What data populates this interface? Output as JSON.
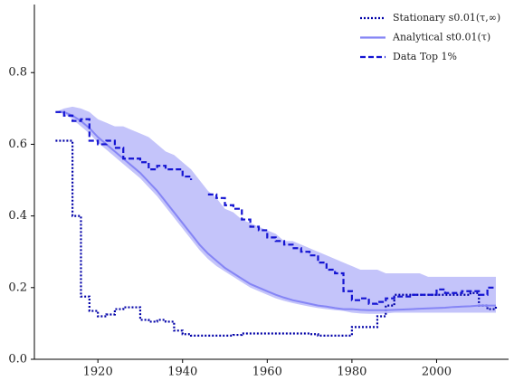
{
  "chart_data": {
    "type": "line",
    "x": [
      1910,
      1912,
      1914,
      1916,
      1918,
      1920,
      1922,
      1924,
      1926,
      1928,
      1930,
      1932,
      1934,
      1936,
      1938,
      1940,
      1942,
      1944,
      1946,
      1948,
      1950,
      1952,
      1954,
      1956,
      1958,
      1960,
      1962,
      1964,
      1966,
      1968,
      1970,
      1972,
      1974,
      1976,
      1978,
      1980,
      1982,
      1984,
      1986,
      1988,
      1990,
      1992,
      1994,
      1996,
      1998,
      2000,
      2002,
      2004,
      2006,
      2008,
      2010,
      2012,
      2014
    ],
    "band": {
      "color": "#c4c4fa",
      "upper": [
        0.69,
        0.7,
        0.705,
        0.7,
        0.69,
        0.67,
        0.66,
        0.65,
        0.65,
        0.64,
        0.63,
        0.62,
        0.6,
        0.58,
        0.57,
        0.55,
        0.53,
        0.5,
        0.47,
        0.45,
        0.42,
        0.41,
        0.39,
        0.38,
        0.37,
        0.36,
        0.35,
        0.33,
        0.33,
        0.32,
        0.31,
        0.3,
        0.29,
        0.28,
        0.27,
        0.26,
        0.25,
        0.25,
        0.25,
        0.24,
        0.24,
        0.24,
        0.24,
        0.24,
        0.23,
        0.23,
        0.23,
        0.23,
        0.23,
        0.23,
        0.23,
        0.23,
        0.23
      ],
      "lower": [
        0.69,
        0.685,
        0.67,
        0.65,
        0.63,
        0.605,
        0.585,
        0.565,
        0.545,
        0.525,
        0.505,
        0.48,
        0.455,
        0.425,
        0.395,
        0.365,
        0.335,
        0.305,
        0.28,
        0.26,
        0.245,
        0.23,
        0.215,
        0.2,
        0.19,
        0.18,
        0.17,
        0.163,
        0.157,
        0.152,
        0.147,
        0.143,
        0.14,
        0.137,
        0.135,
        0.13,
        0.128,
        0.127,
        0.127,
        0.128,
        0.13,
        0.13,
        0.13,
        0.13,
        0.13,
        0.13,
        0.13,
        0.13,
        0.13,
        0.13,
        0.13,
        0.13,
        0.13
      ]
    },
    "series": [
      {
        "name": "Stationary s0.01(τ,∞)",
        "color": "#0000a8",
        "dash": "2 2",
        "drawstyle": "steps",
        "values": [
          0.61,
          0.61,
          0.4,
          0.175,
          0.135,
          0.12,
          0.125,
          0.14,
          0.145,
          0.145,
          0.11,
          0.105,
          0.11,
          0.105,
          0.08,
          0.07,
          0.066,
          0.066,
          0.066,
          0.066,
          0.066,
          0.068,
          0.072,
          0.072,
          0.072,
          0.072,
          0.072,
          0.072,
          0.072,
          0.072,
          0.07,
          0.066,
          0.066,
          0.066,
          0.066,
          0.09,
          0.09,
          0.09,
          0.12,
          0.15,
          0.18,
          0.18,
          0.18,
          0.18,
          0.18,
          0.18,
          0.18,
          0.18,
          0.18,
          0.185,
          0.15,
          0.14,
          0.15
        ]
      },
      {
        "name": "Analytical st0.01(τ)",
        "color": "#8585f5",
        "dash": "none",
        "drawstyle": "default",
        "values": [
          0.69,
          0.69,
          0.68,
          0.665,
          0.645,
          0.62,
          0.6,
          0.58,
          0.56,
          0.54,
          0.52,
          0.495,
          0.47,
          0.44,
          0.41,
          0.38,
          0.35,
          0.32,
          0.295,
          0.275,
          0.255,
          0.24,
          0.225,
          0.21,
          0.2,
          0.19,
          0.18,
          0.172,
          0.165,
          0.16,
          0.155,
          0.15,
          0.147,
          0.143,
          0.14,
          0.14,
          0.138,
          0.137,
          0.137,
          0.137,
          0.138,
          0.139,
          0.14,
          0.141,
          0.142,
          0.143,
          0.144,
          0.146,
          0.147,
          0.148,
          0.15,
          0.15,
          0.15
        ]
      },
      {
        "name": "Data Top 1%",
        "color": "#1414d2",
        "dash": "6 3",
        "drawstyle": "steps",
        "values": [
          0.69,
          0.68,
          0.665,
          0.67,
          0.61,
          0.6,
          0.61,
          0.59,
          0.56,
          0.56,
          0.55,
          0.53,
          0.54,
          0.53,
          0.53,
          0.51,
          0.5,
          null,
          0.46,
          0.45,
          0.43,
          0.42,
          0.39,
          0.37,
          0.36,
          0.34,
          0.33,
          0.32,
          0.31,
          0.3,
          0.29,
          0.27,
          0.25,
          0.24,
          0.19,
          0.165,
          0.17,
          0.155,
          0.16,
          0.17,
          0.175,
          0.175,
          0.18,
          0.18,
          0.18,
          0.195,
          0.185,
          0.185,
          0.19,
          0.19,
          0.18,
          0.2,
          0.2
        ]
      }
    ],
    "xlim": [
      1905,
      2017
    ],
    "ylim": [
      0,
      0.99
    ],
    "xticks": [
      1920,
      1940,
      1960,
      1980,
      2000
    ],
    "yticks": [
      {
        "value": 0,
        "label": "0.0"
      },
      0.2,
      0.4,
      0.6,
      0.8
    ],
    "legend": "upper right"
  }
}
